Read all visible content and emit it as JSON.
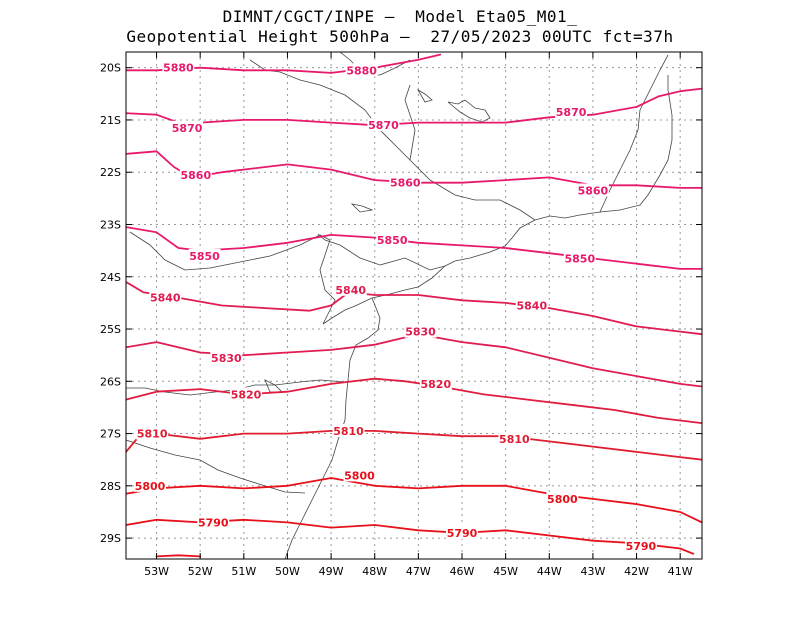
{
  "title": {
    "line1": "DIMNT/CGCT/INPE –  Model Eta05_M01_",
    "line2": "Geopotential Height 500hPa –  27/05/2023 00UTC fct=37h"
  },
  "map": {
    "lon_range": [
      -53.7,
      -40.5
    ],
    "lat_range": [
      -29.4,
      -19.7
    ],
    "lon_ticks": [
      {
        "v": -53,
        "label": "53W"
      },
      {
        "v": -52,
        "label": "52W"
      },
      {
        "v": -51,
        "label": "51W"
      },
      {
        "v": -50,
        "label": "50W"
      },
      {
        "v": -49,
        "label": "49W"
      },
      {
        "v": -48,
        "label": "48W"
      },
      {
        "v": -47,
        "label": "47W"
      },
      {
        "v": -46,
        "label": "46W"
      },
      {
        "v": -45,
        "label": "45W"
      },
      {
        "v": -44,
        "label": "44W"
      },
      {
        "v": -43,
        "label": "43W"
      },
      {
        "v": -42,
        "label": "42W"
      },
      {
        "v": -41,
        "label": "41W"
      }
    ],
    "lat_ticks": [
      {
        "v": -20,
        "label": "20S"
      },
      {
        "v": -21,
        "label": "21S"
      },
      {
        "v": -22,
        "label": "22S"
      },
      {
        "v": -23,
        "label": "23S"
      },
      {
        "v": -24,
        "label": "24S"
      },
      {
        "v": -25,
        "label": "25S"
      },
      {
        "v": -26,
        "label": "26S"
      },
      {
        "v": -27,
        "label": "27S"
      },
      {
        "v": -28,
        "label": "28S"
      },
      {
        "v": -29,
        "label": "29S"
      }
    ],
    "grid": "dotted",
    "contours": [
      {
        "level": "5880",
        "color": "#e8186c",
        "points": [
          [
            -53.7,
            -20.05
          ],
          [
            -53.0,
            -20.05
          ],
          [
            -52.0,
            -20.0
          ],
          [
            -51.0,
            -20.05
          ],
          [
            -50.0,
            -20.05
          ],
          [
            -49.0,
            -20.1
          ],
          [
            -48.0,
            -20.0
          ],
          [
            -47.0,
            -19.85
          ],
          [
            -46.5,
            -19.75
          ]
        ],
        "labels": [
          [
            -52.5,
            -20.0
          ],
          [
            -48.3,
            -20.05
          ]
        ]
      },
      {
        "level": "5870",
        "color": "#e8186c",
        "points": [
          [
            -53.7,
            -20.87
          ],
          [
            -53.0,
            -20.9
          ],
          [
            -52.5,
            -21.05
          ],
          [
            -52.0,
            -21.05
          ],
          [
            -51.0,
            -21.0
          ],
          [
            -50.0,
            -21.0
          ],
          [
            -49.0,
            -21.05
          ],
          [
            -48.0,
            -21.1
          ],
          [
            -47.0,
            -21.05
          ],
          [
            -46.0,
            -21.05
          ],
          [
            -45.0,
            -21.05
          ],
          [
            -44.0,
            -20.95
          ],
          [
            -43.0,
            -20.9
          ],
          [
            -42.0,
            -20.75
          ],
          [
            -41.5,
            -20.55
          ],
          [
            -41.0,
            -20.45
          ],
          [
            -40.5,
            -20.4
          ]
        ],
        "labels": [
          [
            -52.3,
            -21.15
          ],
          [
            -47.8,
            -21.1
          ],
          [
            -43.5,
            -20.85
          ]
        ]
      },
      {
        "level": "5860",
        "color": "#e8186c",
        "points": [
          [
            -53.7,
            -21.65
          ],
          [
            -53.0,
            -21.6
          ],
          [
            -52.6,
            -21.9
          ],
          [
            -52.2,
            -22.1
          ],
          [
            -51.5,
            -22.0
          ],
          [
            -50.0,
            -21.85
          ],
          [
            -49.0,
            -21.95
          ],
          [
            -48.0,
            -22.15
          ],
          [
            -47.0,
            -22.2
          ],
          [
            -46.0,
            -22.2
          ],
          [
            -45.0,
            -22.15
          ],
          [
            -44.0,
            -22.1
          ],
          [
            -43.0,
            -22.25
          ],
          [
            -42.0,
            -22.25
          ],
          [
            -41.0,
            -22.3
          ],
          [
            -40.5,
            -22.3
          ]
        ],
        "labels": [
          [
            -52.1,
            -22.05
          ],
          [
            -47.3,
            -22.2
          ],
          [
            -43.0,
            -22.35
          ]
        ]
      },
      {
        "level": "5850",
        "color": "#e8186c",
        "points": [
          [
            -53.7,
            -23.05
          ],
          [
            -53.0,
            -23.15
          ],
          [
            -52.5,
            -23.45
          ],
          [
            -52.0,
            -23.5
          ],
          [
            -51.0,
            -23.45
          ],
          [
            -50.0,
            -23.35
          ],
          [
            -49.0,
            -23.2
          ],
          [
            -48.0,
            -23.25
          ],
          [
            -47.0,
            -23.35
          ],
          [
            -46.0,
            -23.4
          ],
          [
            -45.0,
            -23.45
          ],
          [
            -44.0,
            -23.55
          ],
          [
            -43.0,
            -23.65
          ],
          [
            -42.0,
            -23.75
          ],
          [
            -41.0,
            -23.85
          ],
          [
            -40.5,
            -23.85
          ]
        ],
        "labels": [
          [
            -51.9,
            -23.6
          ],
          [
            -47.6,
            -23.3
          ],
          [
            -43.3,
            -23.65
          ]
        ]
      },
      {
        "level": "5840",
        "color": "#e01c50",
        "points": [
          [
            -53.7,
            -24.1
          ],
          [
            -53.3,
            -24.3
          ],
          [
            -52.5,
            -24.4
          ],
          [
            -51.5,
            -24.55
          ],
          [
            -50.5,
            -24.6
          ],
          [
            -49.5,
            -24.65
          ],
          [
            -49.0,
            -24.55
          ],
          [
            -48.6,
            -24.3
          ],
          [
            -48.0,
            -24.35
          ],
          [
            -47.0,
            -24.35
          ],
          [
            -46.0,
            -24.45
          ],
          [
            -45.0,
            -24.5
          ],
          [
            -44.0,
            -24.6
          ],
          [
            -43.0,
            -24.75
          ],
          [
            -42.0,
            -24.95
          ],
          [
            -41.0,
            -25.05
          ],
          [
            -40.5,
            -25.1
          ]
        ],
        "labels": [
          [
            -52.8,
            -24.4
          ],
          [
            -48.55,
            -24.25
          ],
          [
            -44.4,
            -24.55
          ]
        ]
      },
      {
        "level": "5830",
        "color": "#e01c50",
        "points": [
          [
            -53.7,
            -25.35
          ],
          [
            -53.0,
            -25.25
          ],
          [
            -52.0,
            -25.45
          ],
          [
            -51.0,
            -25.5
          ],
          [
            -50.0,
            -25.45
          ],
          [
            -49.0,
            -25.4
          ],
          [
            -48.0,
            -25.3
          ],
          [
            -47.0,
            -25.1
          ],
          [
            -46.0,
            -25.25
          ],
          [
            -45.0,
            -25.35
          ],
          [
            -44.0,
            -25.55
          ],
          [
            -43.0,
            -25.75
          ],
          [
            -42.0,
            -25.9
          ],
          [
            -41.0,
            -26.05
          ],
          [
            -40.5,
            -26.1
          ]
        ],
        "labels": [
          [
            -51.4,
            -25.55
          ],
          [
            -46.95,
            -25.05
          ]
        ]
      },
      {
        "level": "5820",
        "color": "#e01c40",
        "points": [
          [
            -53.7,
            -26.35
          ],
          [
            -53.0,
            -26.2
          ],
          [
            -52.0,
            -26.15
          ],
          [
            -51.0,
            -26.25
          ],
          [
            -50.0,
            -26.2
          ],
          [
            -49.0,
            -26.05
          ],
          [
            -48.0,
            -25.95
          ],
          [
            -47.3,
            -26.0
          ],
          [
            -46.5,
            -26.1
          ],
          [
            -45.5,
            -26.25
          ],
          [
            -44.5,
            -26.35
          ],
          [
            -43.5,
            -26.45
          ],
          [
            -42.5,
            -26.55
          ],
          [
            -41.5,
            -26.7
          ],
          [
            -40.5,
            -26.8
          ]
        ],
        "labels": [
          [
            -50.95,
            -26.25
          ],
          [
            -46.6,
            -26.05
          ]
        ]
      },
      {
        "level": "5810",
        "color": "#e01c30",
        "points": [
          [
            -53.7,
            -27.35
          ],
          [
            -53.4,
            -27.05
          ],
          [
            -53.0,
            -27.0
          ],
          [
            -52.0,
            -27.1
          ],
          [
            -51.0,
            -27.0
          ],
          [
            -50.0,
            -27.0
          ],
          [
            -49.0,
            -26.95
          ],
          [
            -48.0,
            -26.95
          ],
          [
            -47.0,
            -27.0
          ],
          [
            -46.0,
            -27.05
          ],
          [
            -45.0,
            -27.05
          ],
          [
            -44.0,
            -27.15
          ],
          [
            -43.0,
            -27.25
          ],
          [
            -42.0,
            -27.35
          ],
          [
            -41.0,
            -27.45
          ],
          [
            -40.5,
            -27.5
          ]
        ],
        "labels": [
          [
            -53.1,
            -27.0
          ],
          [
            -48.6,
            -26.95
          ],
          [
            -44.8,
            -27.1
          ]
        ]
      },
      {
        "level": "5800",
        "color": "#e8101a",
        "points": [
          [
            -53.7,
            -28.15
          ],
          [
            -53.0,
            -28.05
          ],
          [
            -52.0,
            -28.0
          ],
          [
            -51.0,
            -28.05
          ],
          [
            -50.0,
            -28.0
          ],
          [
            -49.0,
            -27.85
          ],
          [
            -48.0,
            -28.0
          ],
          [
            -47.0,
            -28.05
          ],
          [
            -46.0,
            -28.0
          ],
          [
            -45.0,
            -28.0
          ],
          [
            -44.0,
            -28.15
          ],
          [
            -43.0,
            -28.25
          ],
          [
            -42.0,
            -28.35
          ],
          [
            -41.0,
            -28.5
          ],
          [
            -40.5,
            -28.7
          ]
        ],
        "labels": [
          [
            -53.15,
            -28.0
          ],
          [
            -48.35,
            -27.8
          ],
          [
            -43.7,
            -28.25
          ]
        ]
      },
      {
        "level": "5790",
        "color": "#e8101a",
        "points": [
          [
            -53.7,
            -28.75
          ],
          [
            -53.0,
            -28.65
          ],
          [
            -52.0,
            -28.7
          ],
          [
            -51.0,
            -28.65
          ],
          [
            -50.0,
            -28.7
          ],
          [
            -49.0,
            -28.8
          ],
          [
            -48.0,
            -28.75
          ],
          [
            -47.0,
            -28.85
          ],
          [
            -46.0,
            -28.9
          ],
          [
            -45.0,
            -28.85
          ],
          [
            -44.0,
            -28.95
          ],
          [
            -43.0,
            -29.05
          ],
          [
            -42.0,
            -29.1
          ],
          [
            -41.0,
            -29.2
          ],
          [
            -40.7,
            -29.3
          ]
        ],
        "labels": [
          [
            -51.7,
            -28.7
          ],
          [
            -46.0,
            -28.9
          ],
          [
            -41.9,
            -29.15
          ]
        ]
      },
      {
        "level": "",
        "color": "#e8101a",
        "points": [
          [
            -53.0,
            -29.35
          ],
          [
            -52.5,
            -29.33
          ],
          [
            -52.0,
            -29.35
          ]
        ],
        "labels": []
      }
    ]
  }
}
